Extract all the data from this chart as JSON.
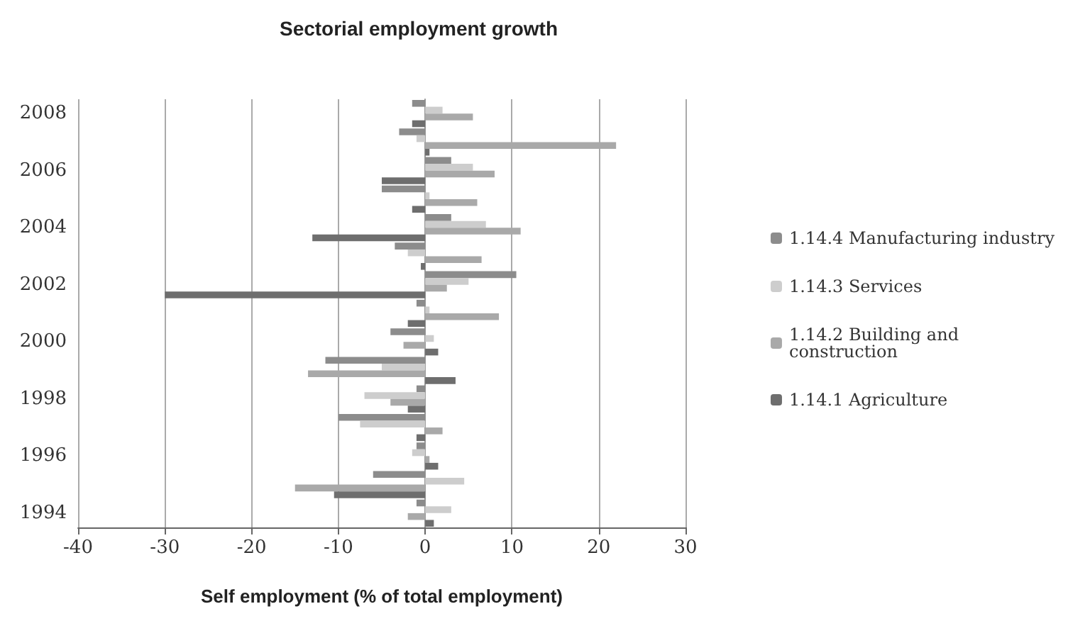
{
  "chart_data": {
    "type": "bar",
    "orientation": "horizontal",
    "title": "Sectorial employment growth",
    "xlabel": "Self employment (% of total employment)",
    "categories": [
      "2008",
      null,
      "2006",
      null,
      "2004",
      null,
      "2002",
      null,
      "2000",
      null,
      "1998",
      null,
      "1996",
      null,
      "1994"
    ],
    "series": [
      {
        "name": "1.14.4 Manufacturing industry",
        "color": "#8c8c8c",
        "values": [
          -1.5,
          -3,
          3,
          -5,
          3,
          -3.5,
          10.5,
          -1,
          -4,
          -11.5,
          -1,
          -10,
          -1,
          -6,
          -1
        ]
      },
      {
        "name": "1.14.3 Services",
        "color": "#cdcdcd",
        "values": [
          2,
          -1,
          5.5,
          0.5,
          7,
          -2,
          5,
          0.5,
          1,
          -5,
          -7,
          -7.5,
          -1.5,
          4.5,
          3
        ]
      },
      {
        "name": "1.14.2 Building and construction",
        "color": "#a9a9a9",
        "values": [
          5.5,
          22,
          8,
          6,
          11,
          6.5,
          2.5,
          8.5,
          -2.5,
          -13.5,
          -4,
          2,
          0.5,
          -15,
          -2
        ]
      },
      {
        "name": "1.14.1 Agriculture",
        "color": "#6e6e6e",
        "values": [
          -1.5,
          0.5,
          -5,
          -1.5,
          -13,
          -0.5,
          -30,
          -2,
          1.5,
          3.5,
          -2,
          -1,
          1.5,
          -10.5,
          1
        ]
      }
    ],
    "xlim": [
      -40,
      30
    ],
    "xticks": [
      -40,
      -30,
      -20,
      -10,
      0,
      10,
      20,
      30
    ],
    "grid": "x",
    "legend": "right"
  }
}
